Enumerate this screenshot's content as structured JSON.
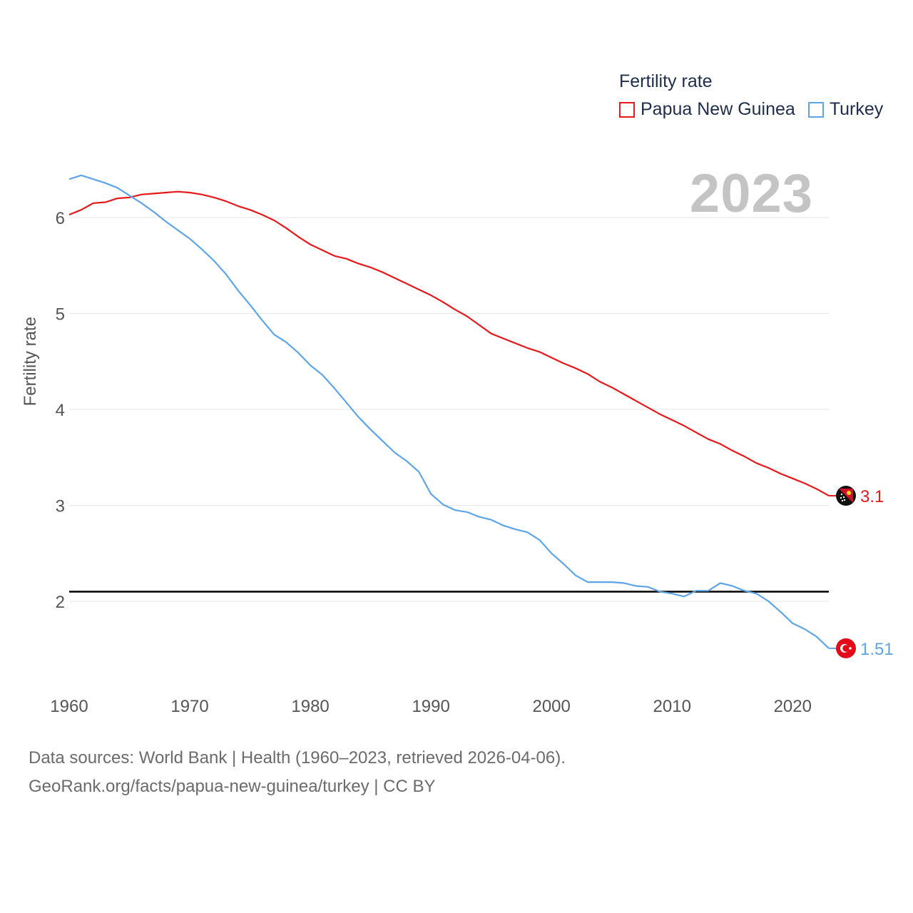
{
  "legend": {
    "title": "Fertility rate",
    "items": [
      {
        "label": "Papua New Guinea",
        "color": "#e8191b"
      },
      {
        "label": "Turkey",
        "color": "#5ea5e8"
      }
    ]
  },
  "year_label": "2023",
  "source": {
    "line1": "Data sources: World Bank | Health (1960–2023, retrieved 2026-04-06).",
    "line2": "GeoRank.org/facts/papua-new-guinea/turkey | CC BY"
  },
  "chart_data": {
    "type": "line",
    "ylabel": "Fertility rate",
    "xlabel": "",
    "xlim": [
      1960,
      2023
    ],
    "ylim": [
      1.3,
      6.6
    ],
    "xticks": [
      1960,
      1970,
      1980,
      1990,
      2000,
      2010,
      2020
    ],
    "yticks": [
      2,
      3,
      4,
      5,
      6
    ],
    "reference_line": 2.1,
    "series": [
      {
        "name": "Papua New Guinea",
        "color": "#e8191b",
        "end_label": "3.1",
        "points": [
          [
            1960,
            6.03
          ],
          [
            1961,
            6.08
          ],
          [
            1962,
            6.15
          ],
          [
            1963,
            6.16
          ],
          [
            1964,
            6.2
          ],
          [
            1965,
            6.21
          ],
          [
            1966,
            6.24
          ],
          [
            1967,
            6.25
          ],
          [
            1968,
            6.26
          ],
          [
            1969,
            6.27
          ],
          [
            1970,
            6.26
          ],
          [
            1971,
            6.24
          ],
          [
            1972,
            6.21
          ],
          [
            1973,
            6.17
          ],
          [
            1974,
            6.12
          ],
          [
            1975,
            6.08
          ],
          [
            1976,
            6.03
          ],
          [
            1977,
            5.97
          ],
          [
            1978,
            5.89
          ],
          [
            1979,
            5.8
          ],
          [
            1980,
            5.72
          ],
          [
            1981,
            5.66
          ],
          [
            1982,
            5.6
          ],
          [
            1983,
            5.57
          ],
          [
            1984,
            5.52
          ],
          [
            1985,
            5.48
          ],
          [
            1986,
            5.43
          ],
          [
            1987,
            5.37
          ],
          [
            1988,
            5.31
          ],
          [
            1989,
            5.25
          ],
          [
            1990,
            5.19
          ],
          [
            1991,
            5.12
          ],
          [
            1992,
            5.04
          ],
          [
            1993,
            4.97
          ],
          [
            1994,
            4.88
          ],
          [
            1995,
            4.79
          ],
          [
            1996,
            4.74
          ],
          [
            1997,
            4.69
          ],
          [
            1998,
            4.64
          ],
          [
            1999,
            4.6
          ],
          [
            2000,
            4.54
          ],
          [
            2001,
            4.48
          ],
          [
            2002,
            4.43
          ],
          [
            2003,
            4.37
          ],
          [
            2004,
            4.29
          ],
          [
            2005,
            4.23
          ],
          [
            2006,
            4.16
          ],
          [
            2007,
            4.09
          ],
          [
            2008,
            4.02
          ],
          [
            2009,
            3.95
          ],
          [
            2010,
            3.89
          ],
          [
            2011,
            3.83
          ],
          [
            2012,
            3.76
          ],
          [
            2013,
            3.69
          ],
          [
            2014,
            3.64
          ],
          [
            2015,
            3.57
          ],
          [
            2016,
            3.51
          ],
          [
            2017,
            3.44
          ],
          [
            2018,
            3.39
          ],
          [
            2019,
            3.33
          ],
          [
            2020,
            3.28
          ],
          [
            2021,
            3.23
          ],
          [
            2022,
            3.17
          ],
          [
            2023,
            3.1
          ]
        ]
      },
      {
        "name": "Turkey",
        "color": "#5ea5e8",
        "end_label": "1.51",
        "points": [
          [
            1960,
            6.4
          ],
          [
            1961,
            6.44
          ],
          [
            1962,
            6.4
          ],
          [
            1963,
            6.36
          ],
          [
            1964,
            6.31
          ],
          [
            1965,
            6.23
          ],
          [
            1966,
            6.15
          ],
          [
            1967,
            6.06
          ],
          [
            1968,
            5.96
          ],
          [
            1969,
            5.87
          ],
          [
            1970,
            5.78
          ],
          [
            1971,
            5.67
          ],
          [
            1972,
            5.55
          ],
          [
            1973,
            5.41
          ],
          [
            1974,
            5.24
          ],
          [
            1975,
            5.09
          ],
          [
            1976,
            4.93
          ],
          [
            1977,
            4.78
          ],
          [
            1978,
            4.7
          ],
          [
            1979,
            4.59
          ],
          [
            1980,
            4.46
          ],
          [
            1981,
            4.36
          ],
          [
            1982,
            4.22
          ],
          [
            1983,
            4.07
          ],
          [
            1984,
            3.92
          ],
          [
            1985,
            3.79
          ],
          [
            1986,
            3.67
          ],
          [
            1987,
            3.55
          ],
          [
            1988,
            3.46
          ],
          [
            1989,
            3.35
          ],
          [
            1990,
            3.12
          ],
          [
            1991,
            3.01
          ],
          [
            1992,
            2.95
          ],
          [
            1993,
            2.93
          ],
          [
            1994,
            2.88
          ],
          [
            1995,
            2.85
          ],
          [
            1996,
            2.79
          ],
          [
            1997,
            2.75
          ],
          [
            1998,
            2.72
          ],
          [
            1999,
            2.64
          ],
          [
            2000,
            2.5
          ],
          [
            2001,
            2.39
          ],
          [
            2002,
            2.27
          ],
          [
            2003,
            2.2
          ],
          [
            2004,
            2.2
          ],
          [
            2005,
            2.2
          ],
          [
            2006,
            2.19
          ],
          [
            2007,
            2.16
          ],
          [
            2008,
            2.15
          ],
          [
            2009,
            2.1
          ],
          [
            2010,
            2.08
          ],
          [
            2011,
            2.05
          ],
          [
            2012,
            2.11
          ],
          [
            2013,
            2.11
          ],
          [
            2014,
            2.19
          ],
          [
            2015,
            2.16
          ],
          [
            2016,
            2.11
          ],
          [
            2017,
            2.08
          ],
          [
            2018,
            2.0
          ],
          [
            2019,
            1.89
          ],
          [
            2020,
            1.77
          ],
          [
            2021,
            1.71
          ],
          [
            2022,
            1.63
          ],
          [
            2023,
            1.51
          ]
        ]
      }
    ]
  }
}
